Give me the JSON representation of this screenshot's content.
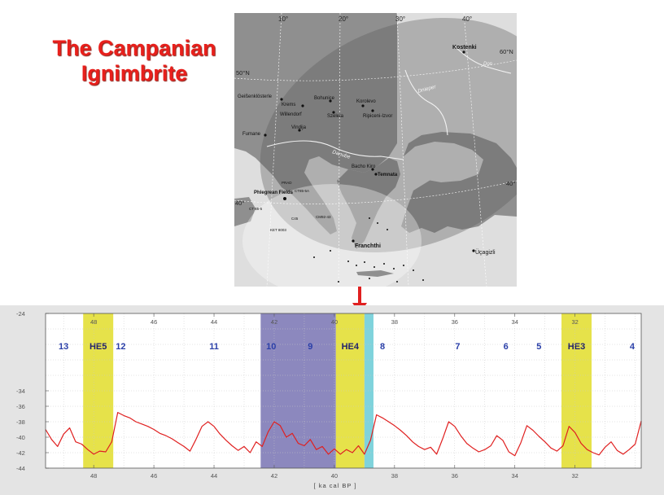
{
  "title": {
    "line1": "The Campanian",
    "line2": "Ignimbrite"
  },
  "map": {
    "meridians": [
      "10°",
      "20°",
      "30°",
      "40°"
    ],
    "parallels": [
      "50°N",
      "60°N",
      "40°",
      "40°"
    ],
    "rivers": [
      "Don",
      "Dnieper",
      "Danube"
    ],
    "sites": [
      "Kostenki",
      "Geißenklösterle",
      "Krems",
      "Willendorf",
      "Bohunice",
      "Szeleta",
      "Korolevo",
      "Ripiceni-Izvor",
      "Fumane",
      "Vindija",
      "Bacho Kiro",
      "Temnata",
      "Phlegrean Fields",
      "Franchthi",
      "Üçagizli"
    ],
    "cores": [
      "CT 85-5",
      "KET 8003",
      "C45",
      "CM92-43",
      "PRAD",
      "CT85-5A"
    ]
  },
  "chart_data": {
    "type": "line",
    "xlabel": "[ ka cal BP ]",
    "ylabel": "",
    "xlim": [
      49.6,
      29.8
    ],
    "ylim": [
      -44,
      -24
    ],
    "x_ticks": [
      "48",
      "46",
      "44",
      "42",
      "40",
      "38",
      "36",
      "34",
      "32"
    ],
    "y_ticks": [
      "-24",
      "-34",
      "-36",
      "-38",
      "-40",
      "-42",
      "-44"
    ],
    "grid": true,
    "bands": [
      {
        "label": "HE5",
        "x0": 48.35,
        "x1": 47.35,
        "color": "#e6e24a"
      },
      {
        "label": "",
        "x0": 42.45,
        "x1": 39.95,
        "color": "#8c88be"
      },
      {
        "label": "HE4",
        "x0": 39.95,
        "x1": 39.0,
        "color": "#e6e24a"
      },
      {
        "label": "",
        "x0": 39.0,
        "x1": 38.7,
        "color": "#7fd3dc"
      },
      {
        "label": "HE3",
        "x0": 32.45,
        "x1": 31.45,
        "color": "#e6e24a"
      }
    ],
    "interstadials": [
      {
        "label": "13",
        "x": 49.0
      },
      {
        "label": "12",
        "x": 47.1
      },
      {
        "label": "11",
        "x": 44.0
      },
      {
        "label": "10",
        "x": 42.1
      },
      {
        "label": "9",
        "x": 40.8
      },
      {
        "label": "8",
        "x": 38.4
      },
      {
        "label": "7",
        "x": 35.9
      },
      {
        "label": "6",
        "x": 34.3
      },
      {
        "label": "5",
        "x": 33.2
      },
      {
        "label": "4",
        "x": 30.1
      }
    ],
    "series": [
      {
        "color": "#e02020",
        "x": [
          49.6,
          49.4,
          49.2,
          49.0,
          48.8,
          48.6,
          48.4,
          48.2,
          48.0,
          47.8,
          47.6,
          47.4,
          47.2,
          47.0,
          46.8,
          46.6,
          46.4,
          46.2,
          46.0,
          45.8,
          45.6,
          45.4,
          45.2,
          45.0,
          44.8,
          44.6,
          44.4,
          44.2,
          44.0,
          43.8,
          43.6,
          43.4,
          43.2,
          43.0,
          42.8,
          42.6,
          42.4,
          42.2,
          42.0,
          41.8,
          41.6,
          41.4,
          41.2,
          41.0,
          40.8,
          40.6,
          40.4,
          40.2,
          40.0,
          39.8,
          39.6,
          39.4,
          39.2,
          39.0,
          38.8,
          38.6,
          38.4,
          38.2,
          38.0,
          37.8,
          37.6,
          37.4,
          37.2,
          37.0,
          36.8,
          36.6,
          36.4,
          36.2,
          36.0,
          35.8,
          35.6,
          35.4,
          35.2,
          35.0,
          34.8,
          34.6,
          34.4,
          34.2,
          34.0,
          33.8,
          33.6,
          33.4,
          33.2,
          33.0,
          32.8,
          32.6,
          32.4,
          32.2,
          32.0,
          31.8,
          31.6,
          31.4,
          31.2,
          31.0,
          30.8,
          30.6,
          30.4,
          30.2,
          30.0,
          29.8
        ],
        "values": [
          -39.0,
          -40.3,
          -41.2,
          -39.6,
          -38.8,
          -40.6,
          -40.9,
          -41.6,
          -42.2,
          -41.8,
          -41.9,
          -40.6,
          -36.8,
          -37.2,
          -37.5,
          -38.0,
          -38.3,
          -38.6,
          -39.0,
          -39.5,
          -39.8,
          -40.2,
          -40.7,
          -41.2,
          -41.8,
          -40.3,
          -38.6,
          -38.0,
          -38.6,
          -39.6,
          -40.4,
          -41.1,
          -41.7,
          -41.2,
          -42.0,
          -40.6,
          -41.2,
          -39.3,
          -38.0,
          -38.5,
          -40.0,
          -39.5,
          -40.8,
          -41.1,
          -40.3,
          -41.6,
          -41.2,
          -42.2,
          -41.5,
          -42.2,
          -41.6,
          -42.0,
          -41.1,
          -42.2,
          -40.4,
          -37.1,
          -37.5,
          -38.0,
          -38.5,
          -39.1,
          -39.8,
          -40.6,
          -41.2,
          -41.6,
          -41.3,
          -42.2,
          -40.2,
          -38.0,
          -38.6,
          -39.8,
          -40.8,
          -41.4,
          -41.9,
          -41.6,
          -41.1,
          -39.8,
          -40.4,
          -41.9,
          -42.4,
          -40.7,
          -38.5,
          -39.1,
          -39.9,
          -40.6,
          -41.4,
          -41.8,
          -41.1,
          -38.6,
          -39.4,
          -40.8,
          -41.6,
          -42.0,
          -42.3,
          -41.3,
          -40.6,
          -41.7,
          -42.2,
          -41.6,
          -40.9,
          -37.9
        ]
      }
    ]
  }
}
